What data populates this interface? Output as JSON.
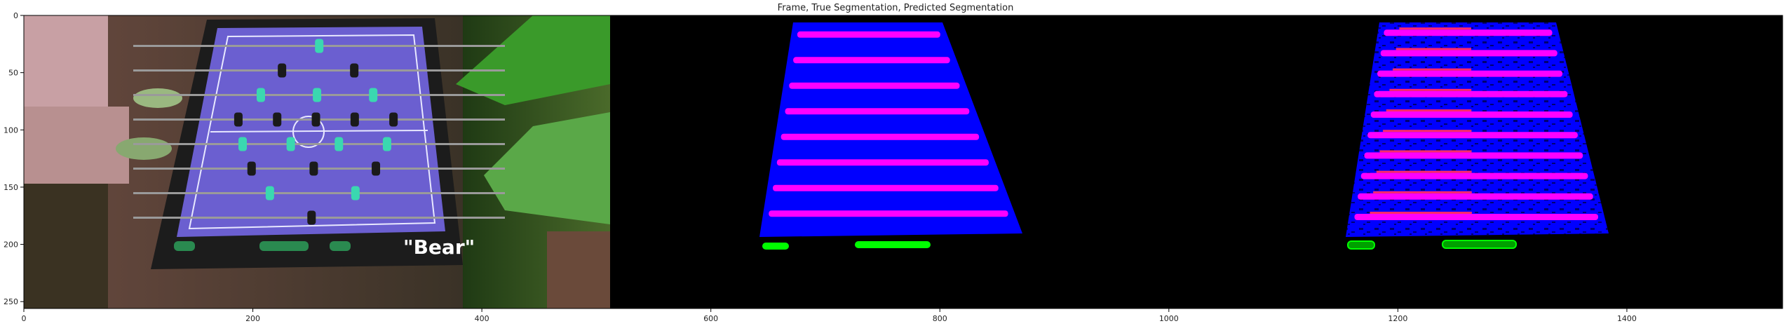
{
  "title": "Frame, True Segmentation, Predicted Segmentation",
  "frame_caption": "\"Bear\"",
  "chart_data": {
    "type": "image",
    "title": "Frame, True Segmentation, Predicted Segmentation",
    "x_ticks": [
      0,
      200,
      400,
      600,
      800,
      1000,
      1200,
      1400
    ],
    "y_ticks": [
      0,
      50,
      100,
      150,
      200,
      250
    ],
    "xlim": [
      0,
      1536
    ],
    "ylim": [
      256,
      0
    ]
  },
  "colors": {
    "table_blue": "#0000ff",
    "rod_magenta": "#ff00ff",
    "men_green": "#00ff00",
    "background": "#000000",
    "frame_felt": "#6b5fd0"
  }
}
